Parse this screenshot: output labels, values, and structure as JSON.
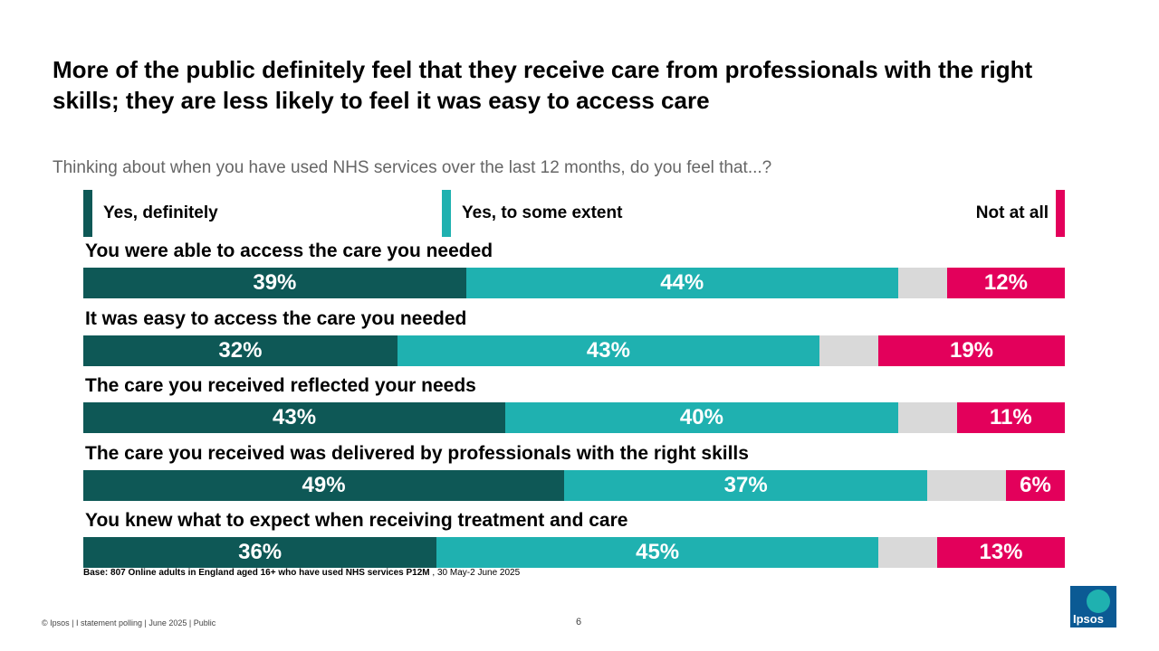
{
  "title": "More of the public definitely feel that they receive care from professionals with the right skills; they are less likely to feel it was easy to access care",
  "subtitle": "Thinking about when you have used NHS services over the last 12 months, do you feel that...?",
  "colors": {
    "definitely": "#0e5856",
    "some_extent": "#1fb1b0",
    "dont_know": "#d9d9d9",
    "not_at_all": "#e3005b"
  },
  "chart_data": {
    "type": "bar",
    "orientation": "horizontal",
    "stacked": true,
    "legend": [
      "Yes, definitely",
      "Yes, to some extent",
      "Not at all"
    ],
    "legend_placement": "top",
    "categories": [
      "You were able to access the care you needed",
      "It was easy to access the care you needed",
      "The care you received reflected your needs",
      "The care you received was delivered by professionals with the right skills",
      "You knew what to expect when receiving treatment and care"
    ],
    "series": [
      {
        "name": "Yes, definitely",
        "values": [
          39,
          32,
          43,
          49,
          36
        ],
        "labels": [
          "39%",
          "32%",
          "43%",
          "49%",
          "36%"
        ]
      },
      {
        "name": "Yes, to some extent",
        "values": [
          44,
          43,
          40,
          37,
          45
        ],
        "labels": [
          "44%",
          "43%",
          "40%",
          "37%",
          "45%"
        ]
      },
      {
        "name": "",
        "values": [
          5,
          6,
          6,
          8,
          6
        ],
        "labels": [
          "",
          "",
          "",
          "",
          ""
        ]
      },
      {
        "name": "Not at all",
        "values": [
          12,
          19,
          11,
          6,
          13
        ],
        "labels": [
          "12%",
          "19%",
          "11%",
          "6%",
          "13%"
        ]
      }
    ],
    "xlim": [
      0,
      100
    ]
  },
  "base": {
    "label": "Base: 807 Online adults in England aged 16+ who have used NHS services P12M",
    "date": ", 30 May-2 June 2025"
  },
  "footer": "© Ipsos | I statement polling | June 2025 | Public",
  "page_number": "6",
  "logo_text": "Ipsos"
}
